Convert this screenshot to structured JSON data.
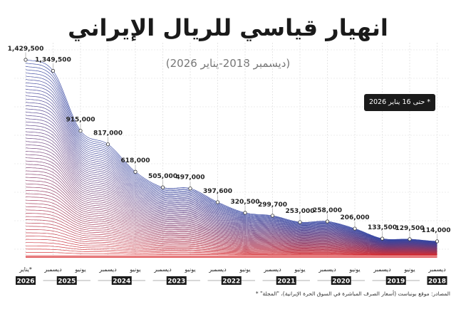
{
  "chart_data": {
    "type": "area",
    "title": "انهيار قياسي للريال الإيراني",
    "subtitle": "(ديسمبر 2018-يناير 2026)",
    "note": "* حتى 16 يناير 2026",
    "source": "المصادر: موقع بونباست (أسعار الصرف المباشرة في السوق الحرة الإيرانية)، \"المجلة\" *",
    "x_direction": "right-to-left",
    "grid": true,
    "points": [
      {
        "month": "ديسمبر",
        "year": "2018",
        "value": 114000,
        "label": "114,000"
      },
      {
        "month": "يونيو",
        "year": "2019",
        "value": 129500,
        "label": "129,500"
      },
      {
        "month": "ديسمبر",
        "year": "2019",
        "value": 133500,
        "label": "133,500"
      },
      {
        "month": "يونيو",
        "year": "2020",
        "value": 206000,
        "label": "206,000"
      },
      {
        "month": "ديسمبر",
        "year": "2020",
        "value": 258000,
        "label": "258,000"
      },
      {
        "month": "يونيو",
        "year": "2021",
        "value": 253000,
        "label": "253,000"
      },
      {
        "month": "ديسمبر",
        "year": "2021",
        "value": 299700,
        "label": "299,700"
      },
      {
        "month": "يونيو",
        "year": "2022",
        "value": 320500,
        "label": "320,500"
      },
      {
        "month": "ديسمبر",
        "year": "2022",
        "value": 397600,
        "label": "397,600"
      },
      {
        "month": "يونيو",
        "year": "2023",
        "value": 497000,
        "label": "497,000"
      },
      {
        "month": "ديسمبر",
        "year": "2023",
        "value": 505000,
        "label": "505,000"
      },
      {
        "month": "يونيو",
        "year": "2024",
        "value": 618000,
        "label": "618,000"
      },
      {
        "month": "ديسمبر",
        "year": "2024",
        "value": 817000,
        "label": "817,000"
      },
      {
        "month": "يونيو",
        "year": "2025",
        "value": 915000,
        "label": "915,000"
      },
      {
        "month": "ديسمبر",
        "year": "2025",
        "value": 1349500,
        "label": "1,349,500"
      },
      {
        "month": "يناير*",
        "year": "2026",
        "value": 1429500,
        "label": "1,429,500"
      }
    ],
    "years": [
      "2018",
      "2019",
      "2020",
      "2021",
      "2022",
      "2023",
      "2024",
      "2025",
      "2026"
    ],
    "ylim": [
      0,
      1429500
    ],
    "colors": {
      "top": "#2f3f9e",
      "bottom": "#d8282b",
      "text": "#222222",
      "badge": "#1b1b1b"
    }
  }
}
